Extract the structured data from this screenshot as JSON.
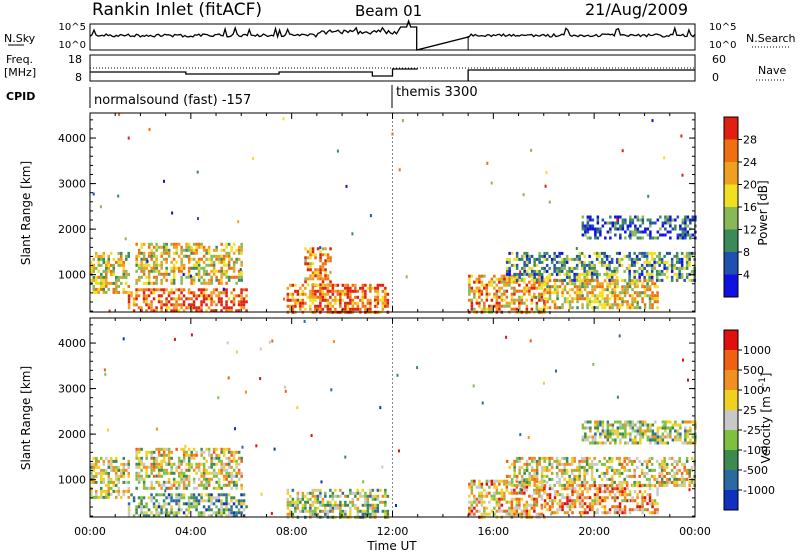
{
  "header": {
    "site": "Rankin Inlet (fitACF)",
    "beam": "Beam 01",
    "date": "21/Aug/2009"
  },
  "top_panels": {
    "nsky_label": "N.Sky",
    "nsky_ticks": [
      "10^5",
      "10^0"
    ],
    "nsearch_label": "N.Search",
    "nsearch_ticks": [
      "10^5",
      "10^0"
    ],
    "freq_label": "Freq.",
    "freq_unit": "[MHz]",
    "freq_ticks": [
      "18",
      "8"
    ],
    "nave_label": "Nave",
    "nave_ticks": [
      "60",
      "0"
    ],
    "cpid_label": "CPID",
    "cpid_segments": [
      {
        "label": "normalsound (fast) -157",
        "start_hour": 0
      },
      {
        "label": "themis 3300",
        "start_hour": 12
      }
    ]
  },
  "chart_data": [
    {
      "type": "heatmap",
      "title": "",
      "ylabel": "Slant Range [km]",
      "xlabel": "",
      "xlim": [
        0,
        24
      ],
      "ylim": [
        180,
        4550
      ],
      "y_ticks": [
        "1000",
        "2000",
        "3000",
        "4000"
      ],
      "colorbar_label": "Power [dB]",
      "colorbar_ticks": [
        "4",
        "8",
        "12",
        "16",
        "20",
        "24",
        "28"
      ],
      "colors": [
        "#1010e0",
        "#2050b0",
        "#3c8a5a",
        "#88b858",
        "#f0e020",
        "#f0a020",
        "#f07010",
        "#e02010"
      ],
      "data_gaps_hours": [
        [
          13,
          15
        ]
      ],
      "echo_bands": [
        {
          "start": 0.0,
          "end": 1.5,
          "range_lo": 600,
          "range_hi": 1500,
          "level": 0.55
        },
        {
          "start": 1.5,
          "end": 6.2,
          "range_lo": 200,
          "range_hi": 700,
          "level": 0.85
        },
        {
          "start": 1.8,
          "end": 6.0,
          "range_lo": 800,
          "range_hi": 1700,
          "level": 0.6
        },
        {
          "start": 7.8,
          "end": 11.8,
          "range_lo": 200,
          "range_hi": 800,
          "level": 0.8
        },
        {
          "start": 8.5,
          "end": 9.5,
          "range_lo": 800,
          "range_hi": 1600,
          "level": 0.75
        },
        {
          "start": 15.0,
          "end": 18.0,
          "range_lo": 200,
          "range_hi": 1000,
          "level": 0.7
        },
        {
          "start": 16.5,
          "end": 24.0,
          "range_lo": 900,
          "range_hi": 1500,
          "level": 0.35
        },
        {
          "start": 19.5,
          "end": 24.0,
          "range_lo": 1800,
          "range_hi": 2300,
          "level": 0.2
        },
        {
          "start": 18.0,
          "end": 22.5,
          "range_lo": 300,
          "range_hi": 900,
          "level": 0.6
        }
      ]
    },
    {
      "type": "heatmap",
      "title": "",
      "ylabel": "Slant Range [km]",
      "xlabel": "Time UT",
      "xlim": [
        0,
        24
      ],
      "ylim": [
        180,
        4550
      ],
      "x_ticks": [
        "00:00",
        "04:00",
        "08:00",
        "12:00",
        "16:00",
        "20:00",
        "00:00"
      ],
      "y_ticks": [
        "1000",
        "2000",
        "3000",
        "4000"
      ],
      "colorbar_label": "Velocity [m s^-1]",
      "colorbar_ticks": [
        "1000",
        "500",
        "100",
        "25",
        "-25",
        "-100",
        "-500",
        "-1000"
      ],
      "colors": [
        "#1030c0",
        "#2a6aa0",
        "#3c8a50",
        "#80c040",
        "#c8c8c8",
        "#f0d020",
        "#f09020",
        "#f06010",
        "#e01010"
      ],
      "data_gaps_hours": [
        [
          13,
          15
        ]
      ],
      "echo_bands": [
        {
          "start": 0.0,
          "end": 1.5,
          "range_lo": 600,
          "range_hi": 1500,
          "level": 0.5
        },
        {
          "start": 1.5,
          "end": 6.2,
          "range_lo": 200,
          "range_hi": 700,
          "level": 0.35
        },
        {
          "start": 1.8,
          "end": 6.0,
          "range_lo": 800,
          "range_hi": 1700,
          "level": 0.55
        },
        {
          "start": 7.8,
          "end": 11.8,
          "range_lo": 200,
          "range_hi": 800,
          "level": 0.45
        },
        {
          "start": 15.0,
          "end": 18.0,
          "range_lo": 200,
          "range_hi": 1000,
          "level": 0.65
        },
        {
          "start": 16.5,
          "end": 24.0,
          "range_lo": 900,
          "range_hi": 1500,
          "level": 0.55
        },
        {
          "start": 19.5,
          "end": 24.0,
          "range_lo": 1800,
          "range_hi": 2300,
          "level": 0.45
        },
        {
          "start": 18.0,
          "end": 22.5,
          "range_lo": 300,
          "range_hi": 900,
          "level": 0.7
        }
      ]
    }
  ]
}
